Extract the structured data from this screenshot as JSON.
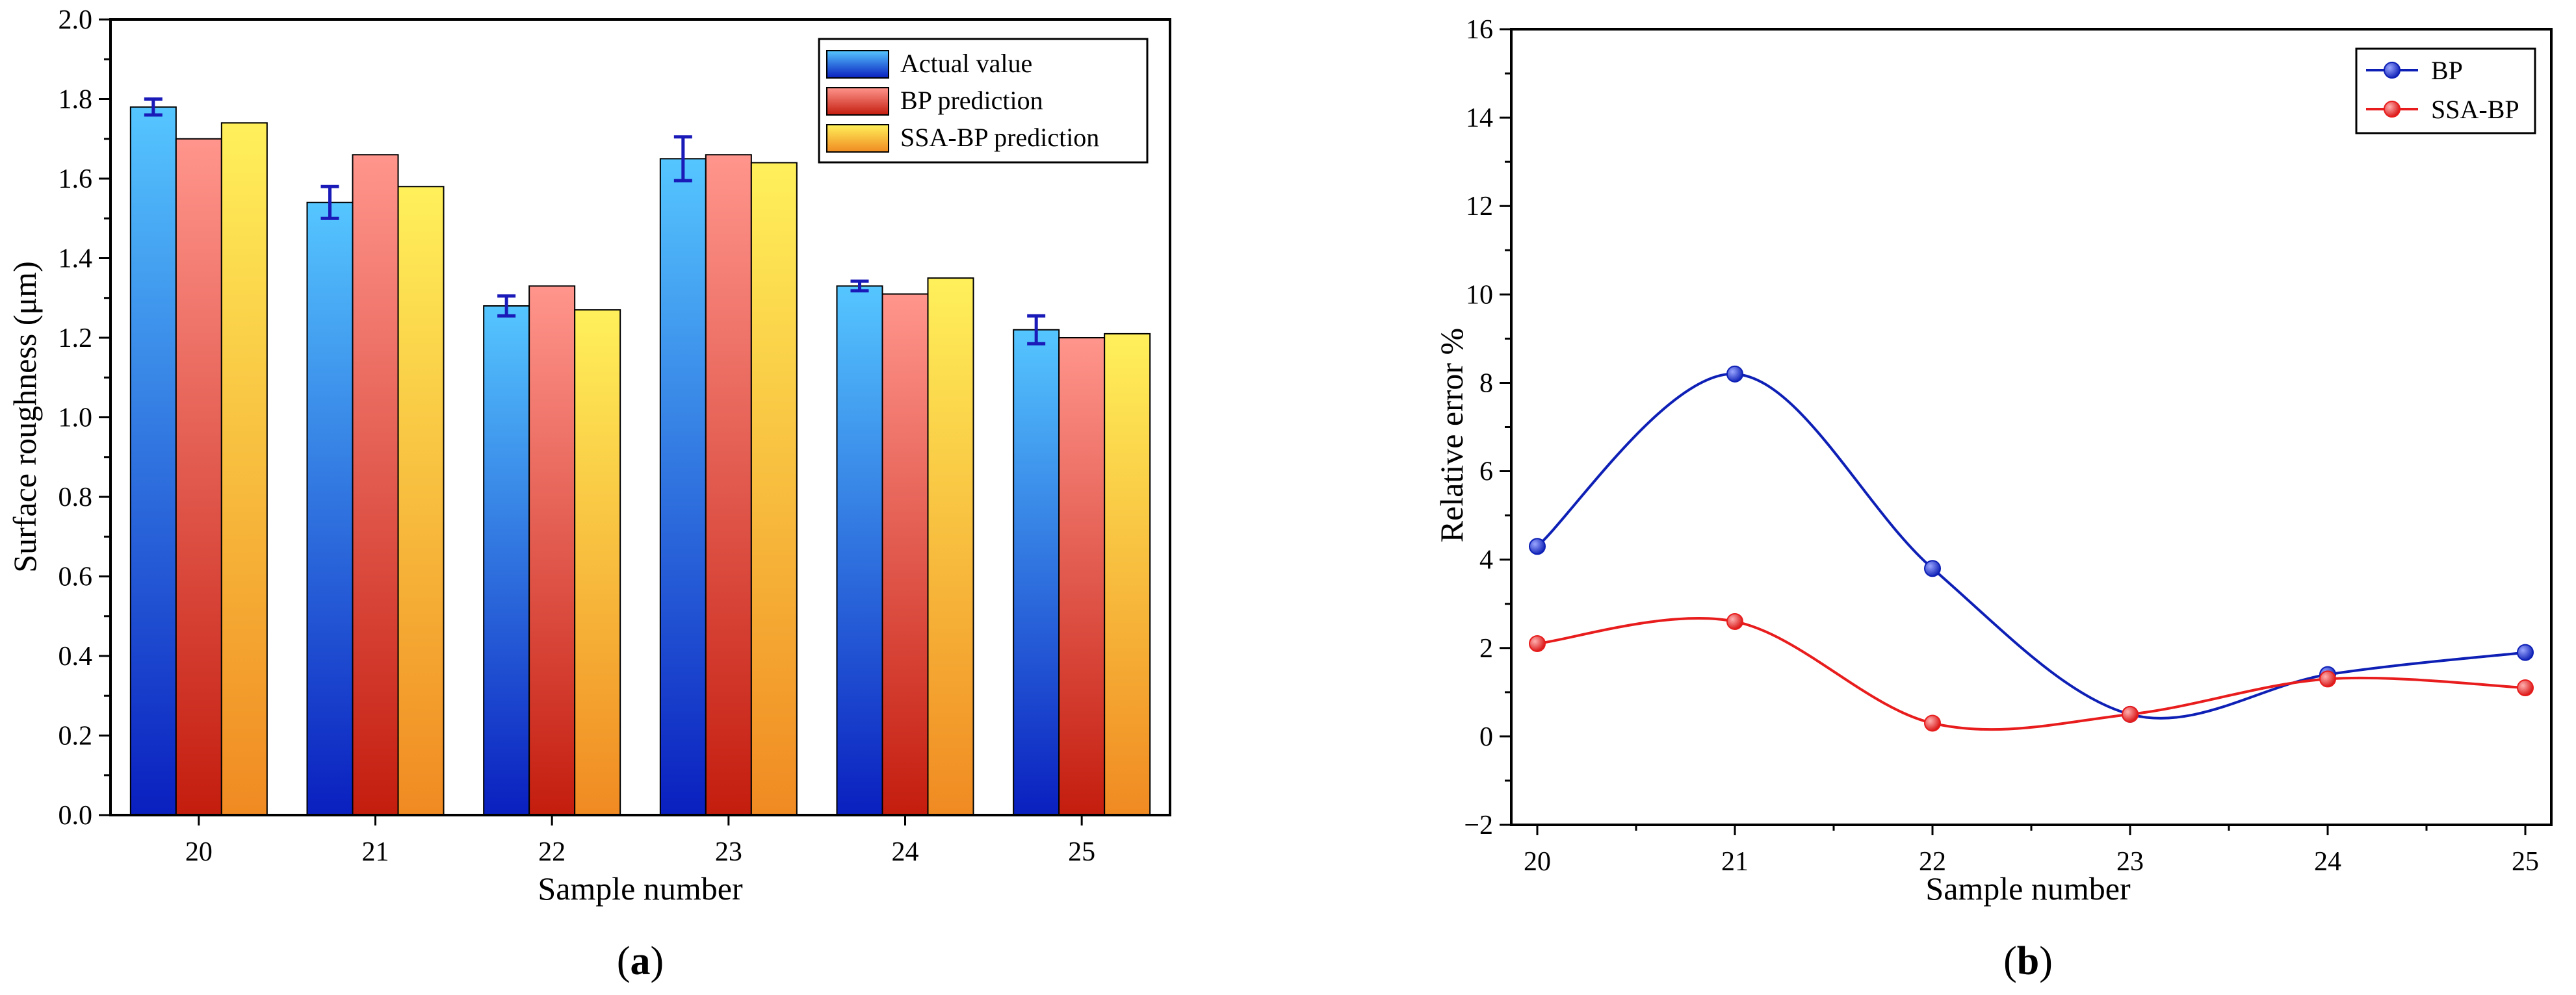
{
  "colors": {
    "actual_top": "#55c6ff",
    "actual_bottom": "#0a1fbf",
    "bp_top": "#ff958c",
    "bp_bottom": "#c41d0e",
    "ssa_top": "#fff05a",
    "ssa_bottom": "#f08a22",
    "bp_line": "#0d1fb5",
    "ssa_line": "#e81c1c",
    "errorbar": "#1a1ab8"
  },
  "panels": {
    "a": {
      "label_open": "(",
      "label_letter": "a",
      "label_close": ")"
    },
    "b": {
      "label_open": "(",
      "label_letter": "b",
      "label_close": ")"
    }
  },
  "chart_data": [
    {
      "type": "bar",
      "panel": "a",
      "categories": [
        "20",
        "21",
        "22",
        "23",
        "24",
        "25"
      ],
      "xlabel": "Sample number",
      "ylabel": "Surface roughness  (μm)",
      "ylim": [
        0.0,
        2.0
      ],
      "yticks": [
        0.0,
        0.2,
        0.4,
        0.6,
        0.8,
        1.0,
        1.2,
        1.4,
        1.6,
        1.8,
        2.0
      ],
      "ytick_labels": [
        "0.0",
        "0.2",
        "0.4",
        "0.6",
        "0.8",
        "1.0",
        "1.2",
        "1.4",
        "1.6",
        "1.8",
        "2.0"
      ],
      "grid": false,
      "legend_position": "top-right",
      "series": [
        {
          "name": "Actual value",
          "values": [
            1.78,
            1.54,
            1.28,
            1.65,
            1.33,
            1.22
          ],
          "error": [
            0.02,
            0.04,
            0.025,
            0.055,
            0.012,
            0.035
          ]
        },
        {
          "name": "BP prediction",
          "values": [
            1.7,
            1.66,
            1.33,
            1.66,
            1.31,
            1.2
          ]
        },
        {
          "name": "SSA-BP prediction",
          "values": [
            1.74,
            1.58,
            1.27,
            1.64,
            1.35,
            1.21
          ]
        }
      ]
    },
    {
      "type": "line",
      "panel": "b",
      "x": [
        20,
        21,
        22,
        23,
        24,
        25
      ],
      "xtick_labels": [
        "20",
        "21",
        "22",
        "23",
        "24",
        "25"
      ],
      "xlabel": "Sample number",
      "ylabel": "Relative error %",
      "ylim": [
        -2,
        16
      ],
      "yticks": [
        -2,
        0,
        2,
        4,
        6,
        8,
        10,
        12,
        14,
        16
      ],
      "ytick_labels": [
        "−2",
        "0",
        "2",
        "4",
        "6",
        "8",
        "10",
        "12",
        "14",
        "16"
      ],
      "grid": false,
      "smooth": true,
      "legend_position": "top-right",
      "series": [
        {
          "name": "BP",
          "values": [
            4.3,
            8.2,
            3.8,
            0.5,
            1.4,
            1.9
          ]
        },
        {
          "name": "SSA-BP",
          "values": [
            2.1,
            2.6,
            0.3,
            0.5,
            1.3,
            1.1
          ]
        }
      ]
    }
  ]
}
